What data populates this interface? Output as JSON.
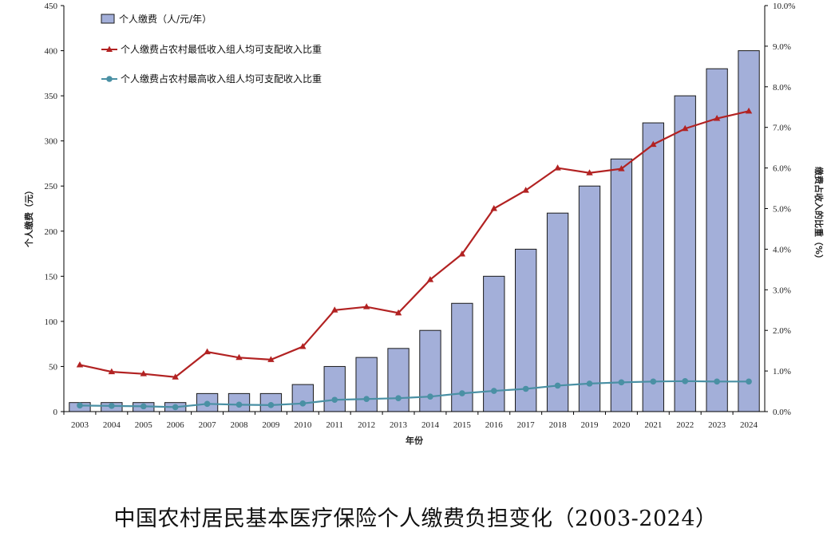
{
  "caption": "中国农村居民基本医疗保险个人缴费负担变化（2003-2024）",
  "chart_data": {
    "type": "bar+line",
    "xlabel": "年份",
    "ylabel_left": "个人缴费（元）",
    "ylabel_right": "缴费占收入的比重（%）",
    "ylim_left": [
      0,
      450
    ],
    "ylim_right": [
      0,
      10
    ],
    "yticks_left": [
      "0",
      "50",
      "100",
      "150",
      "200",
      "250",
      "300",
      "350",
      "400",
      "450"
    ],
    "yticks_right": [
      "0.0%",
      "1.0%",
      "2.0%",
      "3.0%",
      "4.0%",
      "5.0%",
      "6.0%",
      "7.0%",
      "8.0%",
      "9.0%",
      "10.0%"
    ],
    "grid": false,
    "legend_position": "top-left",
    "categories": [
      "2003",
      "2004",
      "2005",
      "2006",
      "2007",
      "2008",
      "2009",
      "2010",
      "2011",
      "2012",
      "2013",
      "2014",
      "2015",
      "2016",
      "2017",
      "2018",
      "2019",
      "2020",
      "2021",
      "2022",
      "2023",
      "2024"
    ],
    "series": [
      {
        "name": "个人缴费（人/元/年）",
        "type": "bar",
        "axis": "left",
        "color": "#a3afd9",
        "values": [
          10,
          10,
          10,
          10,
          20,
          20,
          20,
          30,
          50,
          60,
          70,
          90,
          120,
          150,
          180,
          220,
          250,
          280,
          320,
          350,
          380,
          400
        ]
      },
      {
        "name": "个人缴费占农村最低收入组人均可支配收入比重",
        "type": "line",
        "axis": "right",
        "color": "#b22222",
        "marker": "triangle",
        "values": [
          1.15,
          0.98,
          0.93,
          0.85,
          1.47,
          1.33,
          1.28,
          1.6,
          2.5,
          2.58,
          2.43,
          3.25,
          3.88,
          5.0,
          5.45,
          6.0,
          5.88,
          5.98,
          6.58,
          6.97,
          7.22,
          7.4
        ]
      },
      {
        "name": "个人缴费占农村最高收入组人均可支配收入比重",
        "type": "line",
        "axis": "right",
        "color": "#4a90a4",
        "marker": "circle",
        "values": [
          0.15,
          0.14,
          0.13,
          0.11,
          0.19,
          0.17,
          0.16,
          0.2,
          0.29,
          0.31,
          0.33,
          0.37,
          0.45,
          0.51,
          0.56,
          0.64,
          0.69,
          0.72,
          0.74,
          0.75,
          0.74,
          0.74
        ]
      }
    ]
  }
}
